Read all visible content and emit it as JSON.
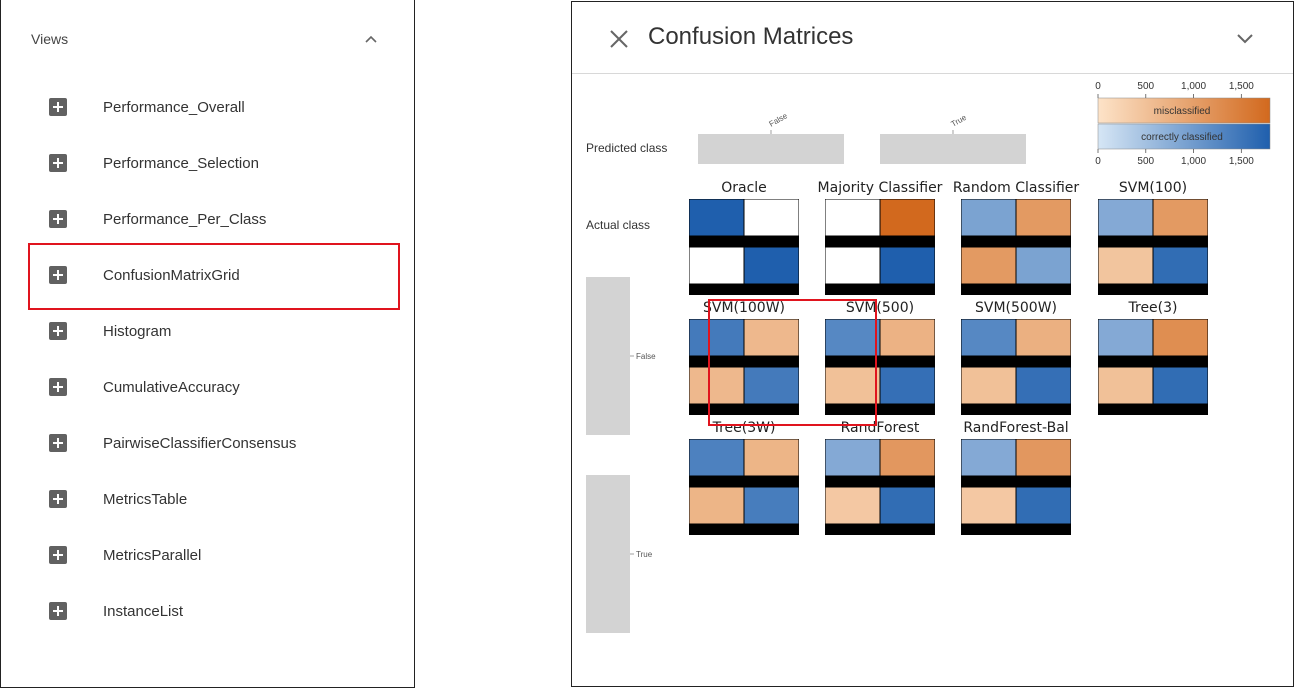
{
  "views_panel": {
    "title": "Views",
    "collapse_icon": "chevron-up-icon",
    "items": [
      {
        "label": "Performance_Overall"
      },
      {
        "label": "Performance_Selection"
      },
      {
        "label": "Performance_Per_Class"
      },
      {
        "label": "ConfusionMatrixGrid"
      },
      {
        "label": "Histogram"
      },
      {
        "label": "CumulativeAccuracy"
      },
      {
        "label": "PairwiseClassifierConsensus"
      },
      {
        "label": "MetricsTable"
      },
      {
        "label": "MetricsParallel"
      },
      {
        "label": "InstanceList"
      }
    ],
    "item_icon": "plus-box-icon"
  },
  "confusion_panel": {
    "title": "Confusion Matrices",
    "close_icon": "close-icon",
    "expand_icon": "chevron-down-icon",
    "predicted_label": "Predicted class",
    "actual_label": "Actual class",
    "predicted_classes": [
      "False",
      "True"
    ],
    "actual_classes": [
      "False",
      "True"
    ],
    "legend": {
      "ticks": [
        "0",
        "500",
        "1,000",
        "1,500"
      ],
      "tick_values": [
        0,
        500,
        1000,
        1500
      ],
      "max": 1800,
      "misclassified_label": "misclassified",
      "correct_label": "correctly classified",
      "misclassified_color": "#d2691e",
      "correct_color": "#1f5fad"
    },
    "matrices": [
      {
        "name": "Oracle",
        "cells": [
          [
            "c",
            1
          ],
          [
            "m",
            0
          ],
          [
            "m",
            0
          ],
          [
            "c",
            1
          ]
        ]
      },
      {
        "name": "Majority Classifier",
        "cells": [
          [
            "c",
            0
          ],
          [
            "m",
            1
          ],
          [
            "m",
            0
          ],
          [
            "c",
            1
          ]
        ]
      },
      {
        "name": "Random Classifier",
        "cells": [
          [
            "c",
            0.5
          ],
          [
            "m",
            0.6
          ],
          [
            "m",
            0.6
          ],
          [
            "c",
            0.5
          ]
        ]
      },
      {
        "name": "SVM(100)",
        "cells": [
          [
            "c",
            0.45
          ],
          [
            "m",
            0.6
          ],
          [
            "m",
            0.25
          ],
          [
            "c",
            0.9
          ]
        ]
      },
      {
        "name": "SVM(100W)",
        "cells": [
          [
            "c",
            0.8
          ],
          [
            "m",
            0.35
          ],
          [
            "m",
            0.35
          ],
          [
            "c",
            0.8
          ]
        ]
      },
      {
        "name": "SVM(500)",
        "cells": [
          [
            "c",
            0.7
          ],
          [
            "m",
            0.4
          ],
          [
            "m",
            0.28
          ],
          [
            "c",
            0.88
          ]
        ]
      },
      {
        "name": "SVM(500W)",
        "cells": [
          [
            "c",
            0.7
          ],
          [
            "m",
            0.42
          ],
          [
            "m",
            0.28
          ],
          [
            "c",
            0.88
          ]
        ]
      },
      {
        "name": "Tree(3)",
        "cells": [
          [
            "c",
            0.45
          ],
          [
            "m",
            0.7
          ],
          [
            "m",
            0.28
          ],
          [
            "c",
            0.9
          ]
        ]
      },
      {
        "name": "Tree(3W)",
        "cells": [
          [
            "c",
            0.75
          ],
          [
            "m",
            0.38
          ],
          [
            "m",
            0.38
          ],
          [
            "c",
            0.78
          ]
        ]
      },
      {
        "name": "RandForest",
        "cells": [
          [
            "c",
            0.45
          ],
          [
            "m",
            0.62
          ],
          [
            "m",
            0.22
          ],
          [
            "c",
            0.9
          ]
        ]
      },
      {
        "name": "RandForest-Bal",
        "cells": [
          [
            "c",
            0.45
          ],
          [
            "m",
            0.62
          ],
          [
            "m",
            0.22
          ],
          [
            "c",
            0.9
          ]
        ]
      }
    ]
  }
}
